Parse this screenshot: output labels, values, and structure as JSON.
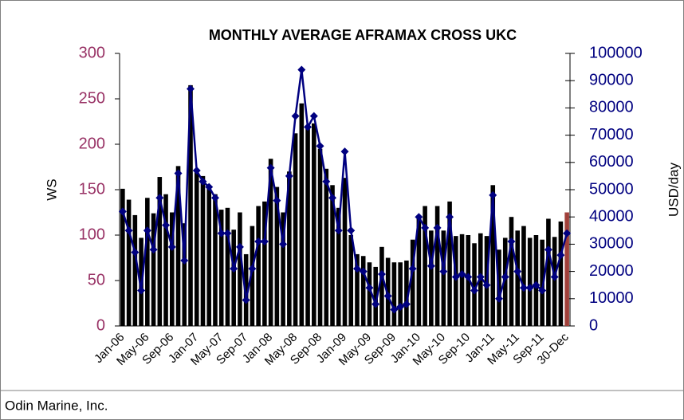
{
  "chart_data": {
    "type": "combo",
    "title": "MONTHLY AVERAGE AFRAMAX CROSS UKC",
    "y_label": "WS",
    "y2_label": "USD/day",
    "source": "Odin Marine, Inc.",
    "categories": [
      "Jan-06",
      null,
      null,
      null,
      "May-06",
      null,
      null,
      null,
      "Sep-06",
      null,
      null,
      null,
      "Jan-07",
      null,
      null,
      null,
      "May-07",
      null,
      null,
      null,
      "Sep-07",
      null,
      null,
      null,
      "Jan-08",
      null,
      null,
      null,
      "May-08",
      null,
      null,
      null,
      "Sep-08",
      null,
      null,
      null,
      "Jan-09",
      null,
      null,
      null,
      "May-09",
      null,
      null,
      null,
      "Sep-09",
      null,
      null,
      null,
      "Jan-10",
      null,
      null,
      null,
      "May-10",
      null,
      null,
      null,
      "Sep-10",
      null,
      null,
      null,
      "Jan-11",
      null,
      null,
      null,
      "May-11",
      null,
      null,
      null,
      "Sep-11",
      null,
      null,
      null,
      "30-Dec"
    ],
    "ylim": [
      0,
      300
    ],
    "yticks": [
      0,
      50,
      100,
      150,
      200,
      250,
      300
    ],
    "y_tick_color": "#993366",
    "y2lim": [
      0,
      100000
    ],
    "y2ticks": [
      0,
      10000,
      20000,
      30000,
      40000,
      50000,
      60000,
      70000,
      80000,
      90000,
      100000
    ],
    "y2_tick_color": "#000080",
    "series": [
      {
        "name": "WS",
        "type": "bar",
        "axis": "y",
        "colors": [
          "#000000",
          "#000000",
          "#000000",
          "#000000",
          "#000000",
          "#000000",
          "#000000",
          "#000000",
          "#000000",
          "#000000",
          "#000000",
          "#000000",
          "#000000",
          "#000000",
          "#000000",
          "#000000",
          "#000000",
          "#000000",
          "#000000",
          "#000000",
          "#000000",
          "#000000",
          "#000000",
          "#000000",
          "#000000",
          "#000000",
          "#000000",
          "#000000",
          "#000000",
          "#000000",
          "#000000",
          "#000000",
          "#000000",
          "#000000",
          "#000000",
          "#000000",
          "#000000",
          "#000000",
          "#000000",
          "#000000",
          "#000000",
          "#000000",
          "#000000",
          "#000000",
          "#000000",
          "#000000",
          "#000000",
          "#000000",
          "#000000",
          "#000000",
          "#000000",
          "#000000",
          "#000000",
          "#000000",
          "#000000",
          "#000000",
          "#000000",
          "#000000",
          "#000000",
          "#000000",
          "#000000",
          "#000000",
          "#000000",
          "#000000",
          "#000000",
          "#000000",
          "#000000",
          "#000000",
          "#000000",
          "#000000",
          "#000000",
          "#000000",
          "#a0403a"
        ],
        "values": [
          151,
          139,
          122,
          97,
          141,
          124,
          164,
          145,
          125,
          176,
          113,
          265,
          170,
          165,
          155,
          145,
          128,
          130,
          106,
          125,
          79,
          110,
          132,
          137,
          184,
          153,
          125,
          170,
          212,
          245,
          218,
          223,
          195,
          173,
          155,
          130,
          163,
          100,
          79,
          77,
          70,
          65,
          87,
          75,
          70,
          70,
          72,
          95,
          120,
          132,
          105,
          132,
          105,
          137,
          99,
          101,
          100,
          91,
          102,
          99,
          155,
          84,
          97,
          120,
          105,
          110,
          97,
          100,
          95,
          118,
          98,
          115,
          125
        ]
      },
      {
        "name": "USD/day",
        "type": "line",
        "axis": "y2",
        "color": "#000080",
        "values": [
          42000,
          35000,
          27000,
          13000,
          35000,
          28000,
          47000,
          37000,
          29000,
          56000,
          24000,
          87000,
          57000,
          53000,
          51000,
          47000,
          34000,
          34000,
          21000,
          29000,
          9500,
          21000,
          31000,
          31000,
          58000,
          46000,
          30000,
          55000,
          77000,
          94000,
          73000,
          77000,
          66000,
          53000,
          47000,
          35000,
          64000,
          35000,
          21000,
          20000,
          14000,
          8000,
          19000,
          11000,
          6000,
          7000,
          8000,
          21000,
          40000,
          36000,
          22000,
          36000,
          20000,
          40000,
          18000,
          19000,
          18000,
          13000,
          18000,
          15000,
          48000,
          10000,
          18000,
          31000,
          20000,
          14000,
          14000,
          15000,
          13000,
          28000,
          18000,
          26000,
          34000
        ]
      }
    ]
  }
}
